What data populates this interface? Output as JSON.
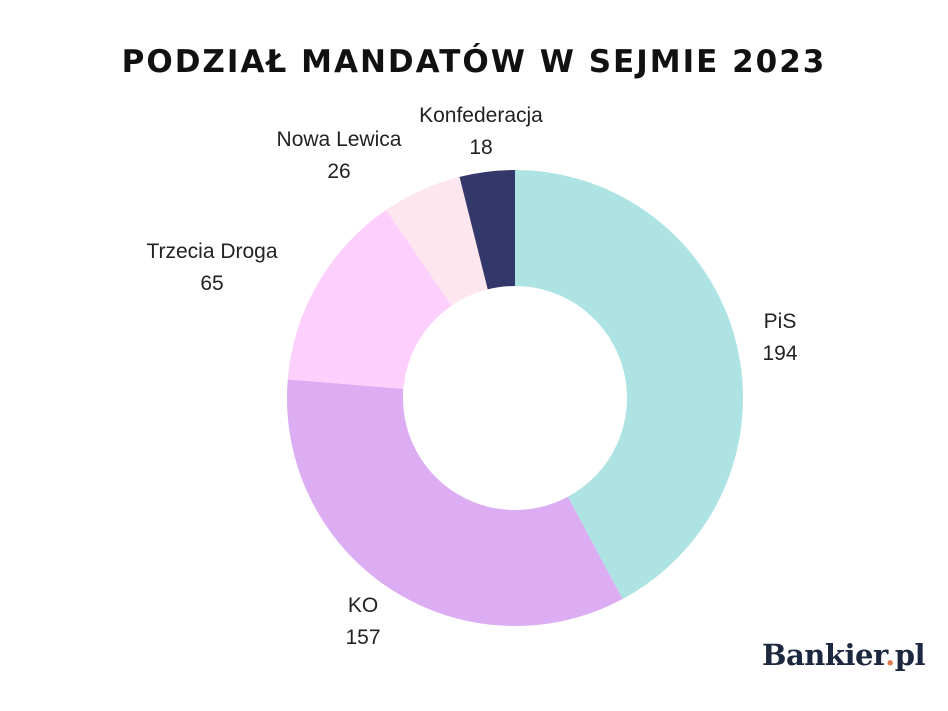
{
  "chart_data": {
    "type": "pie",
    "variant": "donut",
    "title": "PODZIAŁ MANDATÓW W SEJMIE 2023",
    "categories": [
      "PiS",
      "KO",
      "Trzecia Droga",
      "Nowa Lewica",
      "Konfederacja"
    ],
    "values": [
      194,
      157,
      65,
      26,
      18
    ],
    "colors": [
      "#ade3e2",
      "#dcadf3",
      "#fdcffd",
      "#fde6ee",
      "#33376a"
    ],
    "legend": "none"
  },
  "logo": {
    "text_main": "Bankier",
    "text_dot": ".",
    "text_end": "pl"
  }
}
